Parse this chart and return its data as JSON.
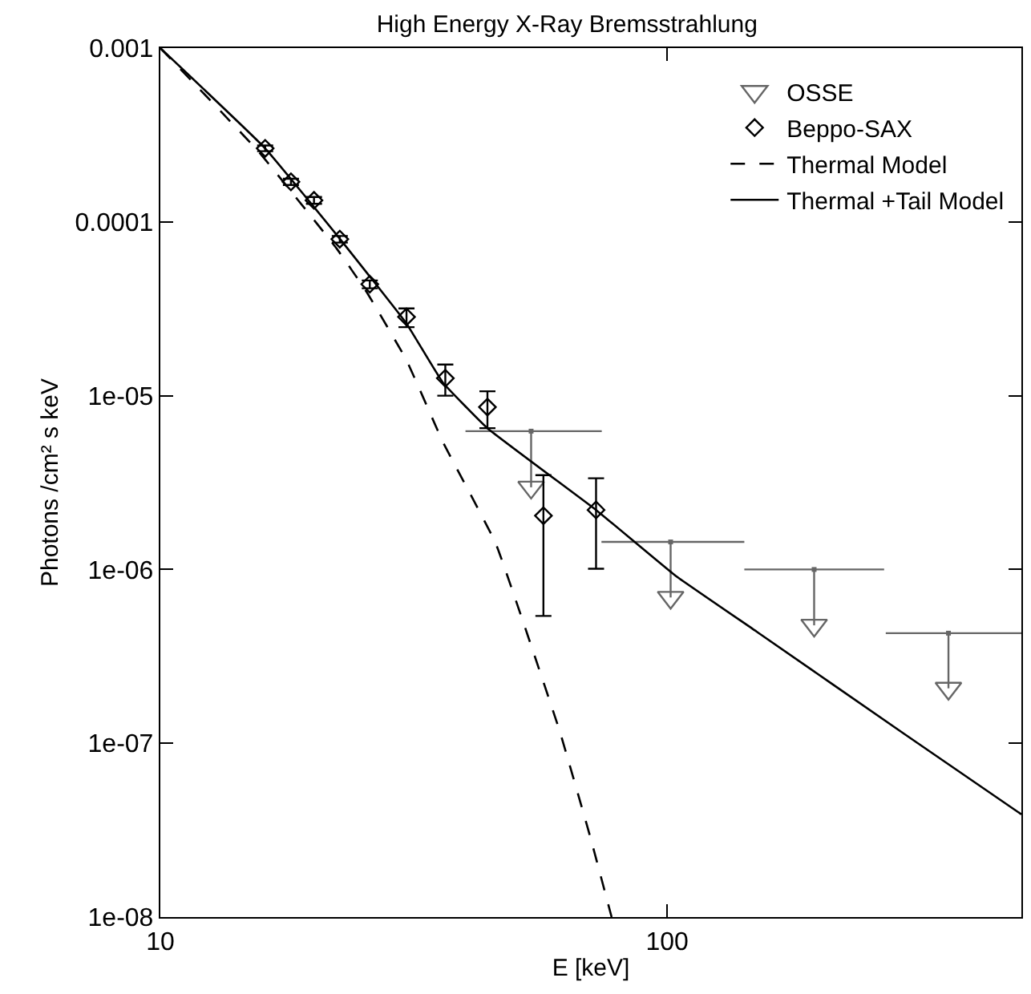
{
  "chart_data": {
    "type": "scatter",
    "title": "High Energy X-Ray Bremsstrahlung",
    "xlabel": "E [keV]",
    "ylabel": "Photons /cm² s keV",
    "log": "xy",
    "legend": "top right",
    "xlim": [
      10,
      500
    ],
    "xticks": [
      10,
      100
    ],
    "ylim": [
      1e-08,
      0.001
    ],
    "yticks": [
      0.001,
      0.0001,
      {
        "value": 1e-05,
        "label": "1e-05"
      },
      {
        "value": 1e-06,
        "label": "1e-06"
      },
      {
        "value": 1e-07,
        "label": "1e-07"
      },
      {
        "value": 1e-08,
        "label": "1e-08"
      }
    ],
    "series": [
      {
        "marker": "square",
        "color": "#666666",
        "x": [
          53.9,
          101.6,
          195,
          359
        ],
        "values": [
          6.25e-06,
          1.44e-06,
          1e-06,
          4.3e-07
        ],
        "xerrors": [
          [
            40,
            74.3
          ],
          [
            74.2,
            142
          ],
          [
            142,
            268
          ],
          [
            270,
            500
          ]
        ]
      },
      {
        "name": "OSSE",
        "marker": "triangle",
        "color": "#666666",
        "x": [
          53.9,
          101.6,
          195,
          359
        ],
        "values": [
          2.97e-06,
          6.9e-07,
          4.77e-07,
          2.07e-07
        ],
        "errors": [
          [
            2.97e-06,
            6.25e-06
          ],
          [
            6.9e-07,
            1.44e-06
          ],
          [
            4.77e-07,
            1e-06
          ],
          [
            2.07e-07,
            4.3e-07
          ]
        ]
      },
      {
        "name": "Beppo-SAX",
        "marker": "diamond",
        "color": "#000000",
        "x": [
          16.1,
          18.1,
          20.1,
          22.6,
          25.9,
          30.6,
          36.5,
          44.2,
          57.0,
          72.4
        ],
        "values": [
          0.000265,
          0.00017,
          0.000133,
          7.96e-05,
          4.38e-05,
          2.84e-05,
          1.26e-05,
          8.6e-06,
          2.04e-06,
          2.2e-06
        ],
        "errors": [
          [
            0.000255,
            0.000275
          ],
          [
            0.000163,
            0.000177
          ],
          [
            0.000127,
            0.000139
          ],
          [
            7.6e-05,
            8.3e-05
          ],
          [
            4.15e-05,
            4.6e-05
          ],
          [
            2.48e-05,
            3.18e-05
          ],
          [
            1e-05,
            1.51e-05
          ],
          [
            6.5e-06,
            1.06e-05
          ],
          [
            5.4e-07,
            3.49e-06
          ],
          [
            1.01e-06,
            3.35e-06
          ]
        ]
      },
      {
        "name": "Thermal Model",
        "type": "line",
        "line_style": "dashed",
        "color": "#000000",
        "x": [
          10,
          15.6,
          22.3,
          25.5,
          30.6,
          36.1,
          45.9,
          61.4,
          70.5,
          77.7
        ],
        "values": [
          0.001,
          0.000255,
          7e-05,
          3.97e-05,
          1.6e-05,
          5.42e-06,
          1.41e-06,
          1.17e-07,
          2.9e-08,
          1e-08
        ]
      },
      {
        "name": "Thermal +Tail Model",
        "type": "line",
        "line_style": "solid",
        "color": "#000000",
        "x": [
          10,
          16.1,
          22.6,
          30.6,
          36.1,
          44.2,
          72.4,
          103.9,
          150,
          294,
          500
        ],
        "values": [
          0.001,
          0.000265,
          8e-05,
          2.6e-05,
          1.19e-05,
          6.5e-06,
          2.2e-06,
          9.2e-07,
          4.4e-07,
          1.13e-07,
          3.9e-08
        ]
      }
    ]
  }
}
